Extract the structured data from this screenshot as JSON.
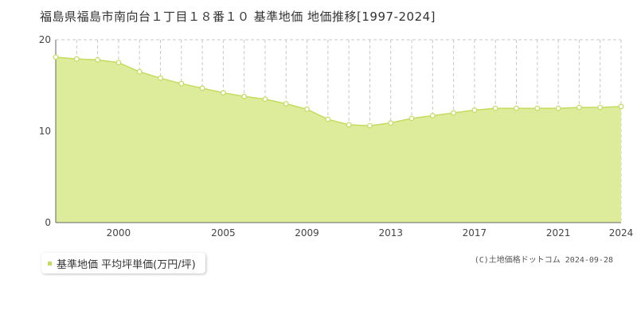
{
  "title": "福島県福島市南向台１丁目１８番１０ 基準地価 地価推移[1997-2024]",
  "legend": {
    "label": "基準地価 平均坪単価(万円/坪)"
  },
  "copyright": "(C)土地価格ドットコム 2024-09-28",
  "colors": {
    "area_fill": "#dcec9a",
    "line": "#c2dc5e",
    "grid": "#c8c8c8"
  },
  "chart_data": {
    "type": "area",
    "x": [
      1997,
      1998,
      1999,
      2000,
      2001,
      2002,
      2003,
      2004,
      2005,
      2006,
      2007,
      2008,
      2009,
      2010,
      2011,
      2012,
      2013,
      2014,
      2015,
      2016,
      2017,
      2018,
      2019,
      2020,
      2021,
      2022,
      2023,
      2024
    ],
    "series": [
      {
        "values": [
          18.1,
          17.9,
          17.8,
          17.5,
          16.5,
          15.8,
          15.2,
          14.7,
          14.2,
          13.8,
          13.5,
          13.0,
          12.4,
          11.3,
          10.7,
          10.6,
          10.9,
          11.4,
          11.7,
          12.0,
          12.3,
          12.5,
          12.5,
          12.5,
          12.5,
          12.6,
          12.6,
          12.7
        ]
      }
    ],
    "xlim": [
      1997,
      2024
    ],
    "ylim": [
      0,
      20
    ],
    "yticks": [
      0,
      10,
      20
    ],
    "xtick_labels": [
      "2000",
      "2005",
      "2009",
      "2013",
      "2017",
      "2021",
      "2024"
    ],
    "grid": true
  }
}
